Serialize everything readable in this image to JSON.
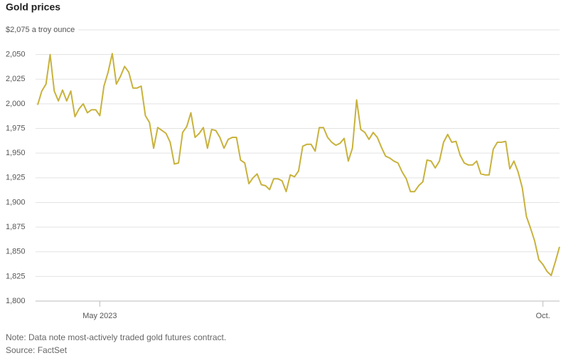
{
  "chart_data": {
    "type": "line",
    "title": "Gold prices",
    "note": "Note: Data note most-actively traded gold futures contract.",
    "source": "Source: FactSet",
    "categories": [
      null,
      null,
      null,
      null,
      null,
      null,
      null,
      null,
      null,
      null,
      null,
      null,
      null,
      null,
      null,
      "May 2023",
      null,
      null,
      null,
      null,
      null,
      null,
      null,
      null,
      null,
      null,
      null,
      null,
      null,
      null,
      null,
      null,
      null,
      null,
      null,
      null,
      null,
      null,
      null,
      null,
      null,
      null,
      null,
      null,
      null,
      null,
      null,
      null,
      null,
      null,
      null,
      null,
      null,
      null,
      null,
      null,
      null,
      null,
      null,
      null,
      null,
      null,
      null,
      null,
      null,
      null,
      null,
      null,
      null,
      null,
      null,
      null,
      null,
      null,
      null,
      null,
      null,
      null,
      null,
      null,
      null,
      null,
      null,
      null,
      null,
      null,
      null,
      null,
      null,
      null,
      null,
      null,
      null,
      null,
      null,
      null,
      null,
      null,
      null,
      null,
      null,
      null,
      null,
      null,
      null,
      null,
      null,
      null,
      null,
      null,
      null,
      null,
      null,
      null,
      null,
      null,
      null,
      null,
      null,
      null,
      null,
      null,
      "Oct.",
      null,
      null,
      null,
      null
    ],
    "series": [
      {
        "name": "Gold",
        "color": "#c8b23c",
        "values": [
          1999,
          2013,
          2020,
          2050,
          2013,
          2003,
          2014,
          2003,
          2013,
          1987,
          1995,
          2000,
          1991,
          1994,
          1994,
          1988,
          2018,
          2032,
          2051,
          2020,
          2028,
          2038,
          2032,
          2016,
          2016,
          2018,
          1988,
          1981,
          1955,
          1976,
          1973,
          1970,
          1961,
          1939,
          1940,
          1971,
          1977,
          1991,
          1966,
          1970,
          1976,
          1955,
          1974,
          1973,
          1966,
          1955,
          1964,
          1966,
          1966,
          1943,
          1940,
          1919,
          1925,
          1929,
          1918,
          1917,
          1913,
          1924,
          1924,
          1922,
          1911,
          1928,
          1926,
          1932,
          1957,
          1959,
          1959,
          1952,
          1976,
          1976,
          1966,
          1961,
          1958,
          1960,
          1965,
          1942,
          1955,
          2004,
          1974,
          1971,
          1964,
          1971,
          1966,
          1956,
          1947,
          1945,
          1942,
          1940,
          1931,
          1924,
          1911,
          1911,
          1917,
          1921,
          1943,
          1942,
          1935,
          1942,
          1961,
          1969,
          1961,
          1962,
          1948,
          1940,
          1938,
          1938,
          1942,
          1929,
          1928,
          1928,
          1954,
          1961,
          1961,
          1962,
          1934,
          1942,
          1931,
          1915,
          1886,
          1874,
          1861,
          1842,
          1837,
          1830,
          1826,
          1840,
          1855
        ]
      }
    ],
    "ylim": [
      1800,
      2075
    ],
    "yticks": [
      {
        "value": 1800,
        "label": "1,800"
      },
      {
        "value": 1825,
        "label": "1,825"
      },
      {
        "value": 1850,
        "label": "1,850"
      },
      {
        "value": 1875,
        "label": "1,875"
      },
      {
        "value": 1900,
        "label": "1,900"
      },
      {
        "value": 1925,
        "label": "1,925"
      },
      {
        "value": 1950,
        "label": "1,950"
      },
      {
        "value": 1975,
        "label": "1,975"
      },
      {
        "value": 2000,
        "label": "2,000"
      },
      {
        "value": 2025,
        "label": "2,025"
      },
      {
        "value": 2050,
        "label": "2,050"
      },
      {
        "value": 2075,
        "label": "$2,075 a troy ounce"
      }
    ],
    "grid": true
  }
}
